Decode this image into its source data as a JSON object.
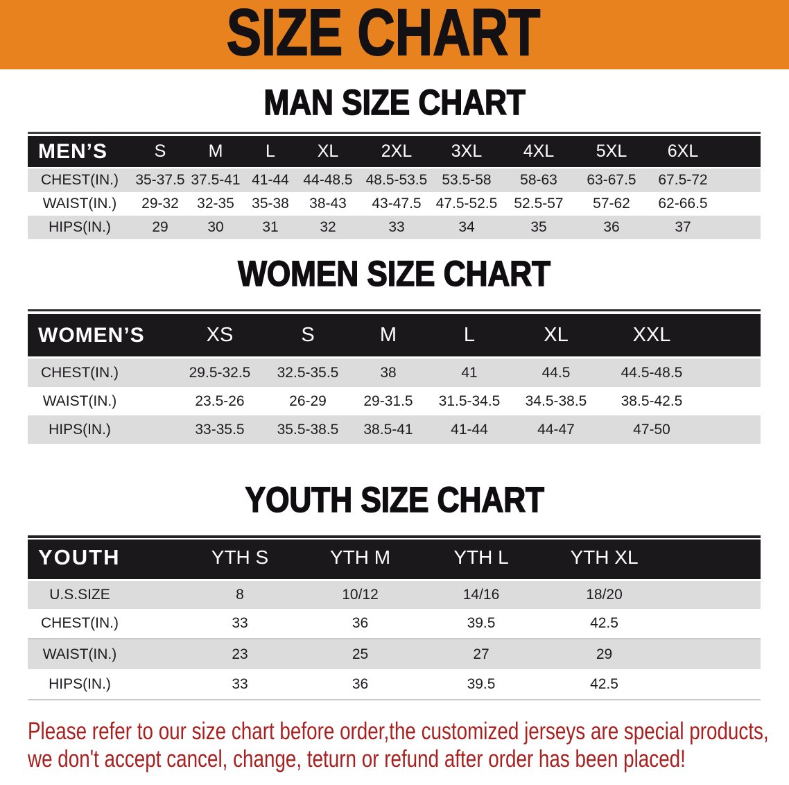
{
  "banner": {
    "title": "SIZE CHART",
    "background_color": "#E8821E",
    "text_color": "#141114"
  },
  "sections": [
    {
      "heading": "MAN SIZE CHART",
      "table": {
        "label": "MEN’S",
        "sizes": [
          "S",
          "M",
          "L",
          "XL",
          "2XL",
          "3XL",
          "4XL",
          "5XL",
          "6XL"
        ],
        "rows": [
          {
            "label": "CHEST(IN.)",
            "values": [
              "35-37.5",
              "37.5-41",
              "41-44",
              "44-48.5",
              "48.5-53.5",
              "53.5-58",
              "58-63",
              "63-67.5",
              "67.5-72"
            ]
          },
          {
            "label": "WAIST(IN.)",
            "values": [
              "29-32",
              "32-35",
              "35-38",
              "38-43",
              "43-47.5",
              "47.5-52.5",
              "52.5-57",
              "57-62",
              "62-66.5"
            ]
          },
          {
            "label": "HIPS(IN.)",
            "values": [
              "29",
              "30",
              "31",
              "32",
              "33",
              "34",
              "35",
              "36",
              "37"
            ]
          }
        ]
      }
    },
    {
      "heading": "WOMEN SIZE CHART",
      "table": {
        "label": "WOMEN’S",
        "sizes": [
          "XS",
          "S",
          "M",
          "L",
          "XL",
          "XXL"
        ],
        "rows": [
          {
            "label": "CHEST(IN.)",
            "values": [
              "29.5-32.5",
              "32.5-35.5",
              "38",
              "41",
              "44.5",
              "44.5-48.5"
            ]
          },
          {
            "label": "WAIST(IN.)",
            "values": [
              "23.5-26",
              "26-29",
              "29-31.5",
              "31.5-34.5",
              "34.5-38.5",
              "38.5-42.5"
            ]
          },
          {
            "label": "HIPS(IN.)",
            "values": [
              "33-35.5",
              "35.5-38.5",
              "38.5-41",
              "41-44",
              "44-47",
              "47-50"
            ]
          }
        ]
      }
    },
    {
      "heading": "YOUTH SIZE CHART",
      "table": {
        "label": "YOUTH",
        "sizes": [
          "YTH S",
          "YTH M",
          "YTH L",
          "YTH XL"
        ],
        "rows": [
          {
            "label": "U.S.SIZE",
            "values": [
              "8",
              "10/12",
              "14/16",
              "18/20"
            ]
          },
          {
            "label": "CHEST(IN.)",
            "values": [
              "33",
              "36",
              "39.5",
              "42.5"
            ]
          },
          {
            "label": "WAIST(IN.)",
            "values": [
              "23",
              "25",
              "27",
              "29"
            ]
          },
          {
            "label": "HIPS(IN.)",
            "values": [
              "33",
              "36",
              "39.5",
              "42.5"
            ]
          }
        ]
      }
    }
  ],
  "disclaimer": {
    "line1": "Please refer to our size chart before order,the customized jerseys are special products,",
    "line2": "we don't accept cancel, change, teturn or refund after order has been placed!",
    "text_color": "#A8201F"
  },
  "colors": {
    "banner_orange": "#E8821E",
    "table_header_black": "#1B181B",
    "stripe_gray": "#DCDCDC",
    "disclaimer_red": "#A8201F"
  }
}
